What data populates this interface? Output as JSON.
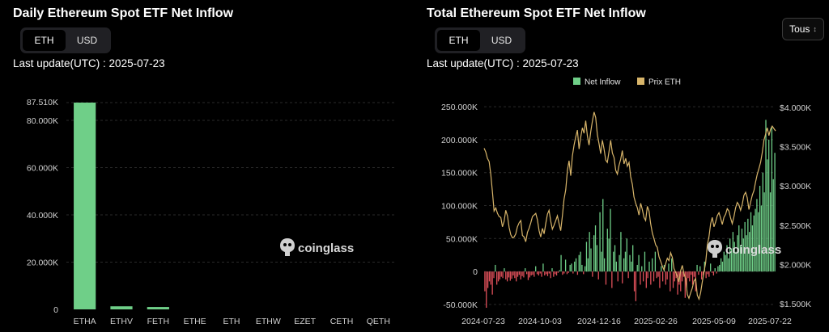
{
  "left": {
    "title": "Daily Ethereum Spot ETF Net Inflow",
    "toggle": {
      "options": [
        "ETH",
        "USD"
      ],
      "active": "ETH"
    },
    "last_update": "Last update(UTC) : 2025-07-23",
    "watermark": "coinglass",
    "watermark_icon": "coinglass-logo-icon"
  },
  "right": {
    "title": "Total Ethereum Spot ETF Net Inflow",
    "toggle": {
      "options": [
        "ETH",
        "USD"
      ],
      "active": "ETH"
    },
    "last_update": "Last update(UTC) : 2025-07-23",
    "range_select": {
      "selected": "Tous",
      "icon": "chevron-up-down-icon"
    },
    "watermark": "coinglass",
    "watermark_icon": "coinglass-logo-icon"
  },
  "colors": {
    "inflow": "#6fcf88",
    "outflow": "#e0505a",
    "price": "#d8b56a",
    "grid": "#2a2a2a",
    "axis_text": "#d0d0d0"
  },
  "chart_data": [
    {
      "type": "bar",
      "categories": [
        "ETHA",
        "ETHV",
        "FETH",
        "ETHE",
        "ETH",
        "ETHW",
        "EZET",
        "CETH",
        "QETH"
      ],
      "values": [
        87510,
        1300,
        1000,
        0,
        0,
        0,
        0,
        0,
        0
      ],
      "max_label": "87.510K",
      "y_ticks": [
        0,
        20000,
        40000,
        60000,
        80000
      ],
      "y_tick_labels": [
        "0",
        "20.000K",
        "40.000K",
        "60.000K",
        "80.000K"
      ],
      "ylim": [
        0,
        87510
      ],
      "grid": true
    },
    {
      "type": "bar+line",
      "x_tick_labels": [
        "2024-07-23",
        "2024-10-03",
        "2024-12-16",
        "2025-02-26",
        "2025-05-09",
        "2025-07-22"
      ],
      "x_range": [
        "2024-07-23",
        "2025-07-22"
      ],
      "legend": {
        "placement": "top-center",
        "entries": [
          "Net Inflow",
          "Prix ETH"
        ]
      },
      "y_left_ticks": [
        -50000,
        0,
        50000,
        100000,
        150000,
        200000,
        250000
      ],
      "y_left_tick_labels": [
        "-50.000K",
        "0",
        "50.000K",
        "100.000K",
        "150.000K",
        "200.000K",
        "250.000K"
      ],
      "y_left_lim": [
        -55000,
        255000
      ],
      "y_right_ticks": [
        1500,
        2000,
        2500,
        3000,
        3500,
        4000
      ],
      "y_right_tick_labels": [
        "$1.500K",
        "$2.000K",
        "$2.500K",
        "$3.000K",
        "$3.500K",
        "$4.000K"
      ],
      "y_right_lim": [
        1450,
        4050
      ],
      "grid": true,
      "series": [
        {
          "name": "Net Inflow",
          "axis": "left",
          "values": [
            -30000,
            -55000,
            -25000,
            -15000,
            -20000,
            -35000,
            -10000,
            10000,
            -20000,
            -15000,
            -12000,
            -8000,
            -10000,
            5000,
            -12000,
            -15000,
            -9000,
            -14000,
            -11000,
            -6000,
            -10000,
            -15000,
            -8000,
            -5000,
            -12000,
            -7000,
            -9000,
            5000,
            -4000,
            -13000,
            -9000,
            -6000,
            -5000,
            -8000,
            8000,
            -4000,
            -6000,
            -3000,
            -8000,
            12000,
            -6000,
            -4000,
            -7000,
            -3000,
            -10000,
            5000,
            -8000,
            -4000,
            -6000,
            -2000,
            2000,
            25000,
            -5000,
            -3000,
            18000,
            -4000,
            -2000,
            10000,
            12000,
            -3000,
            15000,
            20000,
            -5000,
            25000,
            30000,
            10000,
            -4000,
            8000,
            45000,
            20000,
            60000,
            35000,
            -8000,
            55000,
            70000,
            40000,
            -12000,
            90000,
            30000,
            110000,
            20000,
            -20000,
            65000,
            50000,
            95000,
            -25000,
            30000,
            40000,
            15000,
            -15000,
            25000,
            60000,
            -18000,
            20000,
            30000,
            50000,
            -10000,
            25000,
            15000,
            40000,
            -30000,
            -45000,
            10000,
            25000,
            -20000,
            8000,
            -15000,
            30000,
            -25000,
            -10000,
            15000,
            -20000,
            20000,
            -15000,
            30000,
            -10000,
            -8000,
            -25000,
            8000,
            -15000,
            10000,
            -20000,
            -12000,
            12000,
            -30000,
            20000,
            -25000,
            -15000,
            -10000,
            -35000,
            -20000,
            -30000,
            -15000,
            -8000,
            -40000,
            -25000,
            -10000,
            -15000,
            -5000,
            -20000,
            -8000,
            -30000,
            10000,
            -5000,
            8000,
            -12000,
            -6000,
            15000,
            -10000,
            -4000,
            -8000,
            12000,
            -2000,
            -6000,
            5000,
            -3000,
            8000,
            10000,
            20000,
            15000,
            30000,
            25000,
            40000,
            20000,
            50000,
            35000,
            60000,
            45000,
            30000,
            55000,
            70000,
            40000,
            65000,
            50000,
            75000,
            55000,
            80000,
            60000,
            90000,
            70000,
            85000,
            95000,
            110000,
            90000,
            130000,
            100000,
            150000,
            120000,
            230000,
            170000,
            200000,
            120000,
            220000,
            140000,
            180000
          ]
        },
        {
          "name": "Prix ETH",
          "axis": "right",
          "values": [
            3480,
            3430,
            3350,
            3310,
            3150,
            2920,
            2680,
            2720,
            2650,
            2610,
            2600,
            2480,
            2550,
            2690,
            2620,
            2470,
            2380,
            2340,
            2350,
            2390,
            2480,
            2530,
            2560,
            2370,
            2350,
            2290,
            2410,
            2460,
            2530,
            2610,
            2630,
            2650,
            2570,
            2430,
            2350,
            2460,
            2390,
            2520,
            2640,
            2690,
            2550,
            2450,
            2500,
            2560,
            2620,
            2520,
            2430,
            2620,
            2830,
            2950,
            3200,
            3320,
            3130,
            3380,
            3520,
            3620,
            3710,
            3470,
            3620,
            3740,
            3670,
            3830,
            3640,
            3520,
            3690,
            3820,
            3940,
            3870,
            3650,
            3540,
            3410,
            3580,
            3470,
            3330,
            3300,
            3440,
            3580,
            3420,
            3360,
            3200,
            3150,
            3260,
            3340,
            3450,
            3280,
            3350,
            3250,
            3300,
            3120,
            3020,
            2860,
            2780,
            2720,
            2630,
            2780,
            2700,
            2600,
            2560,
            2740,
            2680,
            2520,
            2400,
            2330,
            2250,
            2220,
            2100,
            2040,
            1980,
            1930,
            2010,
            2080,
            2050,
            2150,
            2090,
            1950,
            1900,
            1850,
            1780,
            1920,
            1990,
            1880,
            1820,
            1620,
            1570,
            1640,
            1700,
            1790,
            1820,
            1610,
            1560,
            1640,
            1780,
            1900,
            2020,
            2250,
            2350,
            2520,
            2600,
            2480,
            2540,
            2620,
            2660,
            2590,
            2510,
            2600,
            2640,
            2710,
            2680,
            2590,
            2520,
            2610,
            2720,
            2790,
            2760,
            2690,
            2770,
            2880,
            2920,
            2850,
            2700,
            2790,
            2880,
            2940,
            3050,
            3150,
            3220,
            3300,
            3420,
            3580,
            3660,
            3740,
            3640,
            3720,
            3760,
            3730,
            3700
          ]
        }
      ]
    }
  ]
}
